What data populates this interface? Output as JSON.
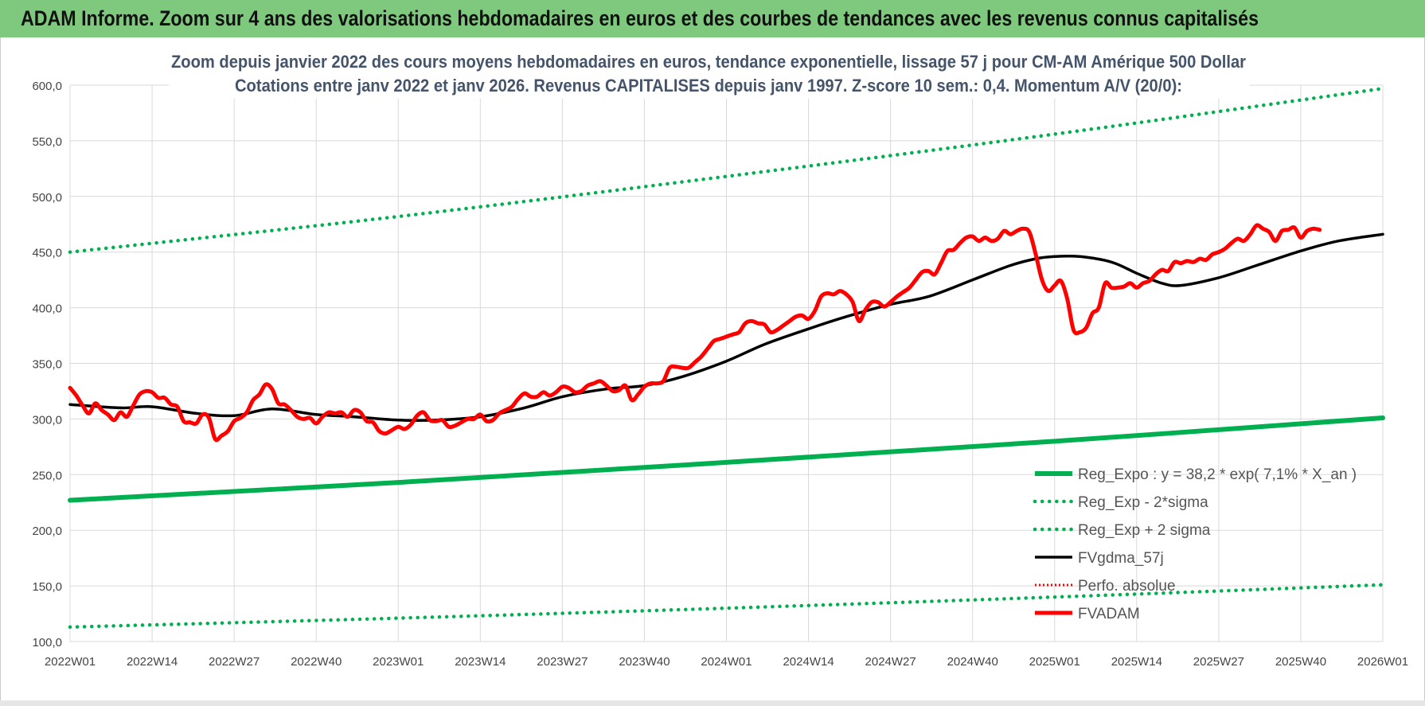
{
  "header": {
    "title": "ADAM Informe. Zoom sur 4 ans des valorisations hebdomadaires en euros et des courbes de tendances avec les revenus connus capitalisés"
  },
  "colors": {
    "header_bg": "#7fc97f",
    "green": "#00b050",
    "black": "#000000",
    "red": "#ff0000",
    "grid": "#d9d9d9"
  },
  "chart_data": {
    "type": "line",
    "title": "Zoom depuis janvier 2022 des cours moyens hebdomadaires en euros, tendance exponentielle, lissage 57 j pour CM-AM Amérique 500 Dollar",
    "subtitle": "Cotations entre janv 2022 et janv 2026. Revenus CAPITALISES depuis janv 1997. Z-score 10 sem.: 0,4. Momentum A/V (20/0):",
    "xlabel": "",
    "ylabel": "",
    "ylim": [
      100,
      600
    ],
    "yticks": [
      "100,0",
      "150,0",
      "200,0",
      "250,0",
      "300,0",
      "350,0",
      "400,0",
      "450,0",
      "500,0",
      "550,0",
      "600,0"
    ],
    "xlim": [
      0,
      208
    ],
    "xticks": [
      {
        "x": 0,
        "label": "2022W01"
      },
      {
        "x": 13,
        "label": "2022W14"
      },
      {
        "x": 26,
        "label": "2022W27"
      },
      {
        "x": 39,
        "label": "2022W40"
      },
      {
        "x": 52,
        "label": "2023W01"
      },
      {
        "x": 65,
        "label": "2023W14"
      },
      {
        "x": 78,
        "label": "2023W27"
      },
      {
        "x": 91,
        "label": "2023W40"
      },
      {
        "x": 104,
        "label": "2024W01"
      },
      {
        "x": 117,
        "label": "2024W14"
      },
      {
        "x": 130,
        "label": "2024W27"
      },
      {
        "x": 143,
        "label": "2024W40"
      },
      {
        "x": 156,
        "label": "2025W01"
      },
      {
        "x": 169,
        "label": "2025W14"
      },
      {
        "x": 182,
        "label": "2025W27"
      },
      {
        "x": 195,
        "label": "2025W40"
      },
      {
        "x": 208,
        "label": "2026W01"
      }
    ],
    "legend": {
      "position": "bottom-right",
      "entries": [
        {
          "label": "Reg_Expo : y = 38,2 * exp( 7,1% *  X_an )",
          "series": "reg_expo"
        },
        {
          "label": "Reg_Exp - 2*sigma",
          "series": "reg_minus"
        },
        {
          "label": "Reg_Exp + 2 sigma",
          "series": "reg_plus"
        },
        {
          "label": "FVgdma_57j",
          "series": "fvgdma"
        },
        {
          "label": "Perfo. absolue",
          "series": "perfo"
        },
        {
          "label": "FVADAM",
          "series": "fvadam"
        }
      ]
    },
    "series": [
      {
        "id": "reg_expo",
        "name": "Reg_Expo : y = 38,2 * exp( 7,1% *  X_an )",
        "style": "solid",
        "color": "#00b050",
        "points": [
          [
            0,
            227
          ],
          [
            52,
            243
          ],
          [
            104,
            261
          ],
          [
            156,
            280
          ],
          [
            208,
            301
          ]
        ]
      },
      {
        "id": "reg_minus",
        "name": "Reg_Exp - 2*sigma",
        "style": "dotted",
        "color": "#00b050",
        "points": [
          [
            0,
            113
          ],
          [
            52,
            121
          ],
          [
            104,
            130
          ],
          [
            156,
            140
          ],
          [
            208,
            151
          ]
        ]
      },
      {
        "id": "reg_plus",
        "name": "Reg_Exp + 2 sigma",
        "style": "dotted",
        "color": "#00b050",
        "points": [
          [
            0,
            450
          ],
          [
            52,
            482
          ],
          [
            104,
            518
          ],
          [
            156,
            556
          ],
          [
            208,
            597
          ]
        ]
      },
      {
        "id": "fvgdma",
        "name": "FVgdma_57j",
        "style": "solid",
        "color": "#000000",
        "points": [
          [
            0,
            313
          ],
          [
            8,
            310
          ],
          [
            13,
            311
          ],
          [
            20,
            305
          ],
          [
            26,
            303
          ],
          [
            32,
            309
          ],
          [
            39,
            304
          ],
          [
            45,
            302
          ],
          [
            52,
            299
          ],
          [
            58,
            299
          ],
          [
            65,
            302
          ],
          [
            72,
            310
          ],
          [
            78,
            320
          ],
          [
            85,
            327
          ],
          [
            91,
            330
          ],
          [
            97,
            338
          ],
          [
            104,
            352
          ],
          [
            110,
            367
          ],
          [
            117,
            381
          ],
          [
            123,
            392
          ],
          [
            130,
            403
          ],
          [
            136,
            410
          ],
          [
            143,
            425
          ],
          [
            149,
            438
          ],
          [
            153,
            444
          ],
          [
            156,
            446
          ],
          [
            160,
            446
          ],
          [
            165,
            441
          ],
          [
            169,
            431
          ],
          [
            173,
            422
          ],
          [
            176,
            420
          ],
          [
            182,
            427
          ],
          [
            188,
            438
          ],
          [
            195,
            451
          ],
          [
            201,
            460
          ],
          [
            208,
            466
          ]
        ]
      },
      {
        "id": "fvadam",
        "name": "FVADAM",
        "style": "solid",
        "color": "#ff0000",
        "points": [
          [
            0,
            328
          ],
          [
            1,
            321
          ],
          [
            2,
            312
          ],
          [
            3,
            305
          ],
          [
            4,
            314
          ],
          [
            5,
            308
          ],
          [
            6,
            304
          ],
          [
            7,
            299
          ],
          [
            8,
            306
          ],
          [
            9,
            302
          ],
          [
            10,
            312
          ],
          [
            11,
            322
          ],
          [
            12,
            325
          ],
          [
            13,
            324
          ],
          [
            14,
            319
          ],
          [
            15,
            319
          ],
          [
            16,
            313
          ],
          [
            17,
            311
          ],
          [
            18,
            298
          ],
          [
            19,
            297
          ],
          [
            20,
            296
          ],
          [
            21,
            304
          ],
          [
            22,
            301
          ],
          [
            23,
            282
          ],
          [
            24,
            285
          ],
          [
            25,
            289
          ],
          [
            26,
            298
          ],
          [
            27,
            301
          ],
          [
            28,
            306
          ],
          [
            29,
            317
          ],
          [
            30,
            322
          ],
          [
            31,
            331
          ],
          [
            32,
            327
          ],
          [
            33,
            314
          ],
          [
            34,
            313
          ],
          [
            35,
            308
          ],
          [
            36,
            302
          ],
          [
            37,
            300
          ],
          [
            38,
            301
          ],
          [
            39,
            296
          ],
          [
            40,
            302
          ],
          [
            41,
            306
          ],
          [
            42,
            305
          ],
          [
            43,
            306
          ],
          [
            44,
            302
          ],
          [
            45,
            308
          ],
          [
            46,
            306
          ],
          [
            47,
            298
          ],
          [
            48,
            297
          ],
          [
            49,
            289
          ],
          [
            50,
            287
          ],
          [
            51,
            290
          ],
          [
            52,
            293
          ],
          [
            53,
            291
          ],
          [
            54,
            295
          ],
          [
            55,
            303
          ],
          [
            56,
            306
          ],
          [
            57,
            299
          ],
          [
            58,
            298
          ],
          [
            59,
            299
          ],
          [
            60,
            293
          ],
          [
            61,
            294
          ],
          [
            62,
            297
          ],
          [
            63,
            300
          ],
          [
            64,
            300
          ],
          [
            65,
            304
          ],
          [
            66,
            298
          ],
          [
            67,
            299
          ],
          [
            68,
            305
          ],
          [
            69,
            308
          ],
          [
            70,
            311
          ],
          [
            71,
            318
          ],
          [
            72,
            323
          ],
          [
            73,
            320
          ],
          [
            74,
            320
          ],
          [
            75,
            324
          ],
          [
            76,
            321
          ],
          [
            77,
            324
          ],
          [
            78,
            329
          ],
          [
            79,
            328
          ],
          [
            80,
            324
          ],
          [
            81,
            325
          ],
          [
            82,
            330
          ],
          [
            83,
            332
          ],
          [
            84,
            334
          ],
          [
            85,
            330
          ],
          [
            86,
            325
          ],
          [
            87,
            326
          ],
          [
            88,
            330
          ],
          [
            89,
            317
          ],
          [
            90,
            322
          ],
          [
            91,
            329
          ],
          [
            92,
            332
          ],
          [
            93,
            332
          ],
          [
            94,
            334
          ],
          [
            95,
            346
          ],
          [
            96,
            347
          ],
          [
            97,
            346
          ],
          [
            98,
            346
          ],
          [
            99,
            351
          ],
          [
            100,
            356
          ],
          [
            101,
            363
          ],
          [
            102,
            370
          ],
          [
            103,
            372
          ],
          [
            104,
            374
          ],
          [
            105,
            376
          ],
          [
            106,
            378
          ],
          [
            107,
            386
          ],
          [
            108,
            388
          ],
          [
            109,
            386
          ],
          [
            110,
            385
          ],
          [
            111,
            378
          ],
          [
            112,
            380
          ],
          [
            113,
            384
          ],
          [
            114,
            388
          ],
          [
            115,
            392
          ],
          [
            116,
            393
          ],
          [
            117,
            390
          ],
          [
            118,
            397
          ],
          [
            119,
            410
          ],
          [
            120,
            413
          ],
          [
            121,
            412
          ],
          [
            122,
            415
          ],
          [
            123,
            412
          ],
          [
            124,
            405
          ],
          [
            125,
            388
          ],
          [
            126,
            398
          ],
          [
            127,
            405
          ],
          [
            128,
            405
          ],
          [
            129,
            401
          ],
          [
            130,
            405
          ],
          [
            131,
            410
          ],
          [
            132,
            414
          ],
          [
            133,
            418
          ],
          [
            134,
            425
          ],
          [
            135,
            432
          ],
          [
            136,
            433
          ],
          [
            137,
            430
          ],
          [
            138,
            440
          ],
          [
            139,
            451
          ],
          [
            140,
            452
          ],
          [
            141,
            458
          ],
          [
            142,
            463
          ],
          [
            143,
            464
          ],
          [
            144,
            460
          ],
          [
            145,
            463
          ],
          [
            146,
            460
          ],
          [
            147,
            462
          ],
          [
            148,
            469
          ],
          [
            149,
            466
          ],
          [
            150,
            469
          ],
          [
            151,
            471
          ],
          [
            152,
            468
          ],
          [
            153,
            448
          ],
          [
            154,
            425
          ],
          [
            155,
            415
          ],
          [
            156,
            420
          ],
          [
            157,
            424
          ],
          [
            158,
            408
          ],
          [
            159,
            380
          ],
          [
            160,
            378
          ],
          [
            161,
            382
          ],
          [
            162,
            395
          ],
          [
            163,
            400
          ],
          [
            164,
            422
          ],
          [
            165,
            418
          ],
          [
            166,
            418
          ],
          [
            167,
            419
          ],
          [
            168,
            422
          ],
          [
            169,
            418
          ],
          [
            170,
            422
          ],
          [
            171,
            424
          ],
          [
            172,
            430
          ],
          [
            173,
            434
          ],
          [
            174,
            433
          ],
          [
            175,
            441
          ],
          [
            176,
            440
          ],
          [
            177,
            442
          ],
          [
            178,
            441
          ],
          [
            179,
            444
          ],
          [
            180,
            443
          ],
          [
            181,
            448
          ],
          [
            182,
            450
          ],
          [
            183,
            453
          ],
          [
            184,
            458
          ],
          [
            185,
            462
          ],
          [
            186,
            460
          ],
          [
            187,
            466
          ],
          [
            188,
            474
          ],
          [
            189,
            471
          ],
          [
            190,
            468
          ],
          [
            191,
            460
          ],
          [
            192,
            469
          ],
          [
            193,
            470
          ],
          [
            194,
            472
          ],
          [
            195,
            463
          ],
          [
            196,
            469
          ],
          [
            197,
            471
          ],
          [
            198,
            470
          ]
        ]
      }
    ]
  }
}
